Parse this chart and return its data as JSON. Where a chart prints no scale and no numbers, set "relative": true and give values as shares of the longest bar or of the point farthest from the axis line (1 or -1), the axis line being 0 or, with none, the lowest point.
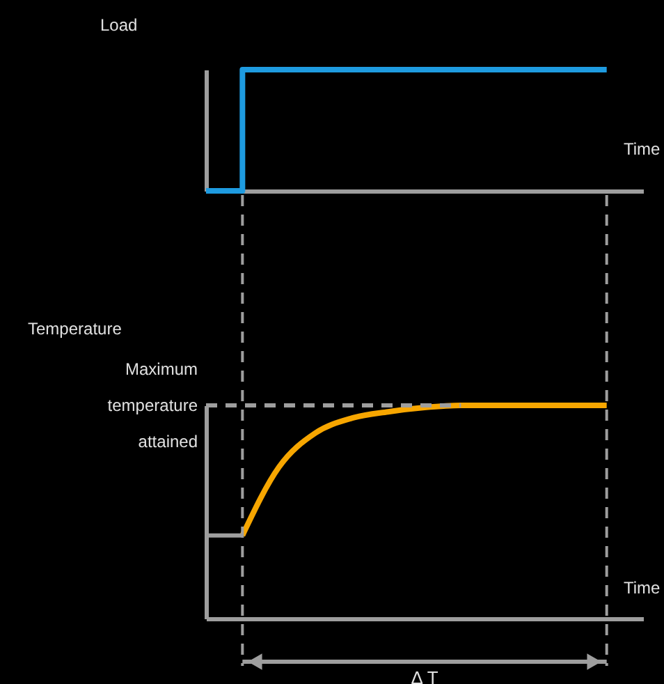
{
  "chart_data": [
    {
      "type": "step",
      "ylabel": "Load",
      "xlabel": "Time",
      "relative": true,
      "categories": [
        null,
        null,
        null,
        null,
        null,
        null,
        null,
        null,
        null,
        null,
        null,
        null,
        null
      ],
      "tick_labels": false,
      "grid": false,
      "marker": "none",
      "line_style": "solid",
      "series": [
        {
          "color": "#1e9be0",
          "values": [
            0,
            1,
            1,
            1,
            1,
            1,
            1,
            1,
            1,
            1,
            1,
            1,
            null
          ]
        }
      ]
    },
    {
      "type": "line",
      "ylabel": "Temperature",
      "xlabel": "Time",
      "relative": true,
      "categories": [
        null,
        null,
        null,
        null,
        null,
        null,
        null,
        null,
        null,
        null,
        null,
        null,
        null
      ],
      "tick_labels": false,
      "grid": false,
      "marker": "none",
      "line_style": "solid",
      "series": [
        {
          "color": "#f7a600",
          "values": [
            null,
            0.39,
            0.71,
            0.87,
            0.94,
            0.97,
            0.99,
            1,
            1,
            1,
            1,
            1,
            null
          ]
        }
      ],
      "ref_lines": [
        {
          "axis": "y",
          "value": 1,
          "label": "Maximum temperature attained",
          "color": "#9e9e9e",
          "line_style": "dashed"
        },
        {
          "axis": "y",
          "value": 0.39,
          "color": "#9e9e9e",
          "line_style": "solid"
        }
      ],
      "annotations": [
        "Δ T"
      ]
    }
  ]
}
